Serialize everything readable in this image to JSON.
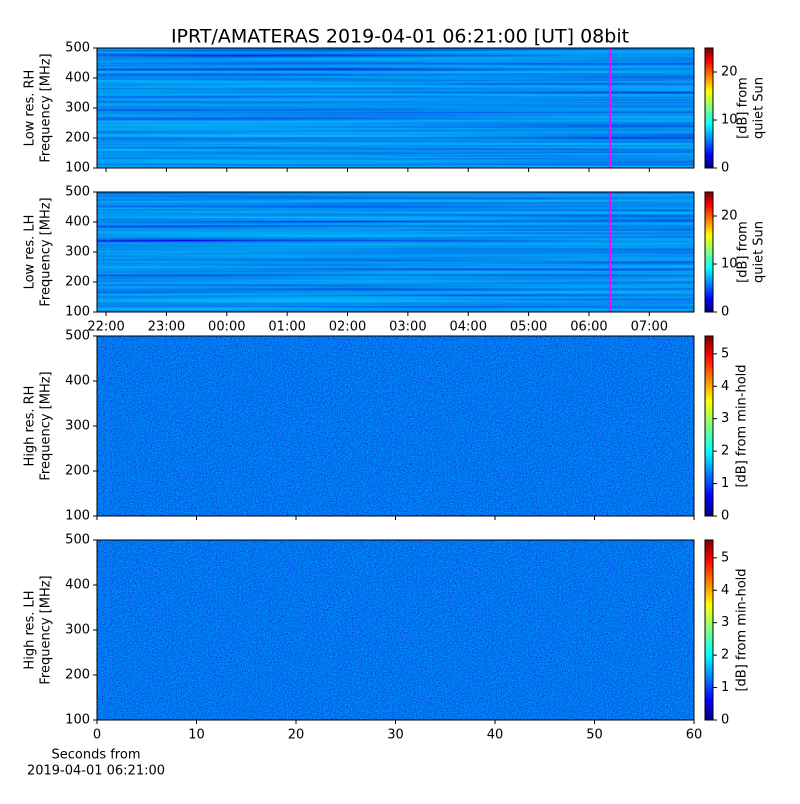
{
  "title": "IPRT/AMATERAS 2019-04-01 06:21:00 [UT]   08bit",
  "chart_data": [
    {
      "type": "heatmap",
      "ylabel": [
        "Low res. RH",
        "Frequency [MHz]"
      ],
      "xlim": [
        -2.15,
        7.74
      ],
      "xticks": [
        -2,
        -1,
        0,
        1,
        2,
        3,
        4,
        5,
        6,
        7
      ],
      "ylim": [
        100,
        500
      ],
      "yticks": [
        100,
        200,
        300,
        400,
        500
      ],
      "marker_x": 6.35,
      "marker_color": "#ff00ff",
      "colorbar_label": [
        "[dB] from",
        "quiet Sun"
      ],
      "clim": [
        0,
        25
      ],
      "cticks": [
        0,
        10,
        20
      ]
    },
    {
      "type": "heatmap",
      "ylabel": [
        "Low res. LH",
        "Frequency [MHz]"
      ],
      "xlim": [
        -2.15,
        7.74
      ],
      "xticks": [
        {
          "value": -2,
          "label": "22:00"
        },
        {
          "value": -1,
          "label": "23:00"
        },
        {
          "value": 0,
          "label": "00:00"
        },
        {
          "value": 1,
          "label": "01:00"
        },
        {
          "value": 2,
          "label": "02:00"
        },
        {
          "value": 3,
          "label": "03:00"
        },
        {
          "value": 4,
          "label": "04:00"
        },
        {
          "value": 5,
          "label": "05:00"
        },
        {
          "value": 6,
          "label": "06:00"
        },
        {
          "value": 7,
          "label": "07:00"
        }
      ],
      "ylim": [
        100,
        500
      ],
      "yticks": [
        100,
        200,
        300,
        400,
        500
      ],
      "marker_x": 6.35,
      "marker_color": "#ff00ff",
      "colorbar_label": [
        "[dB] from",
        "quiet Sun"
      ],
      "clim": [
        0,
        25
      ],
      "cticks": [
        0,
        10,
        20
      ]
    },
    {
      "type": "heatmap",
      "ylabel": [
        "High res. RH",
        "Frequency [MHz]"
      ],
      "xlim": [
        0,
        60
      ],
      "xticks": [
        0,
        10,
        20,
        30,
        40,
        50,
        60
      ],
      "ylim": [
        100,
        500
      ],
      "yticks": [
        100,
        200,
        300,
        400,
        500
      ],
      "colorbar_label": [
        "[dB] from min-hold"
      ],
      "clim": [
        0,
        5.55
      ],
      "cticks": [
        0,
        1,
        2,
        3,
        4,
        5
      ]
    },
    {
      "type": "heatmap",
      "ylabel": [
        "High res. LH",
        "Frequency [MHz]"
      ],
      "xlabel": [
        "Seconds from",
        "2019-04-01 06:21:00"
      ],
      "xlim": [
        0,
        60
      ],
      "xticks": [
        0,
        10,
        20,
        30,
        40,
        50,
        60
      ],
      "ylim": [
        100,
        500
      ],
      "yticks": [
        100,
        200,
        300,
        400,
        500
      ],
      "colorbar_label": [
        "[dB] from min-hold"
      ],
      "clim": [
        0,
        5.55
      ],
      "cticks": [
        0,
        1,
        2,
        3,
        4,
        5
      ]
    }
  ]
}
